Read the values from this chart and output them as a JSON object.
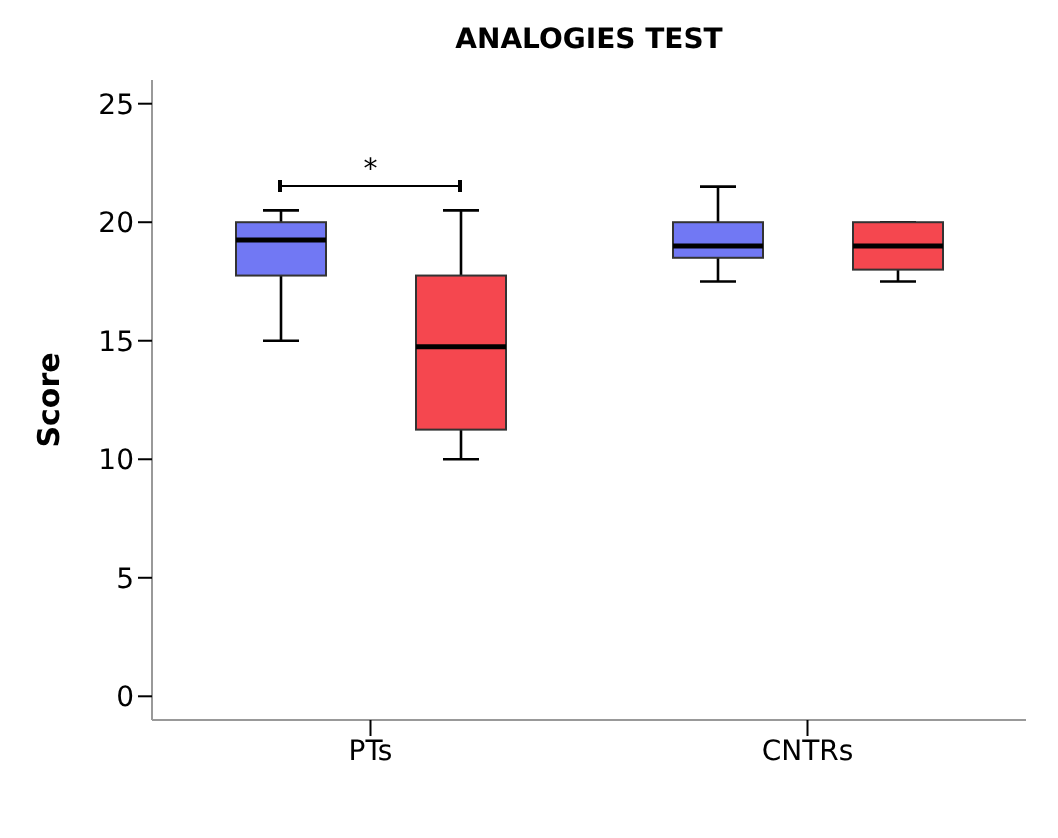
{
  "chart_data": {
    "type": "box",
    "title": "ANALOGIES TEST",
    "ylabel": "Score",
    "categories": [
      "PTs",
      "CNTRs"
    ],
    "ylim": [
      -1,
      26
    ],
    "yticks": [
      0,
      5,
      10,
      15,
      20,
      25
    ],
    "grid": false,
    "legend": false,
    "series": [
      {
        "color": "#7178f4",
        "boxes": [
          {
            "low": 15,
            "q1": 17.75,
            "median": 19.25,
            "q3": 20,
            "high": 20.5
          },
          {
            "low": 17.5,
            "q1": 18.5,
            "median": 19,
            "q3": 20,
            "high": 21.5
          }
        ]
      },
      {
        "color": "#f5474f",
        "boxes": [
          {
            "low": 10,
            "q1": 11.25,
            "median": 14.75,
            "q3": 17.75,
            "high": 20.5
          },
          {
            "low": 17.5,
            "q1": 18,
            "median": 19,
            "q3": 20,
            "high": 20
          }
        ]
      }
    ],
    "annotations": [
      "*"
    ]
  }
}
